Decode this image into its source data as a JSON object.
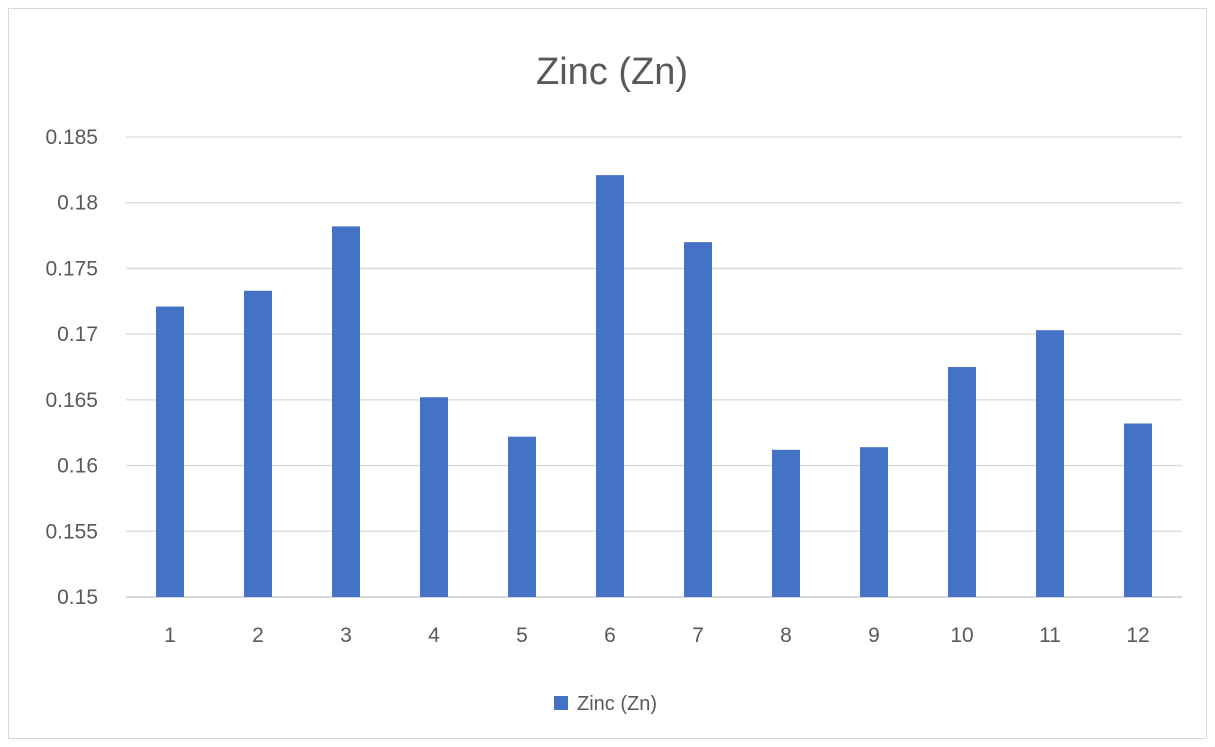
{
  "chart_data": {
    "type": "bar",
    "title": "Zinc (Zn)",
    "categories": [
      "1",
      "2",
      "3",
      "4",
      "5",
      "6",
      "7",
      "8",
      "9",
      "10",
      "11",
      "12"
    ],
    "series": [
      {
        "name": "Zinc (Zn)",
        "color": "#4472c4",
        "values": [
          0.1721,
          0.1733,
          0.1782,
          0.1652,
          0.1622,
          0.1821,
          0.177,
          0.1612,
          0.1614,
          0.1675,
          0.1703,
          0.1632
        ]
      }
    ],
    "y_ticks": [
      "0.15",
      "0.155",
      "0.16",
      "0.165",
      "0.17",
      "0.175",
      "0.18",
      "0.185"
    ],
    "ylim": [
      0.15,
      0.185
    ],
    "xlabel": "",
    "ylabel": "",
    "grid": true,
    "legend": "bottom"
  }
}
